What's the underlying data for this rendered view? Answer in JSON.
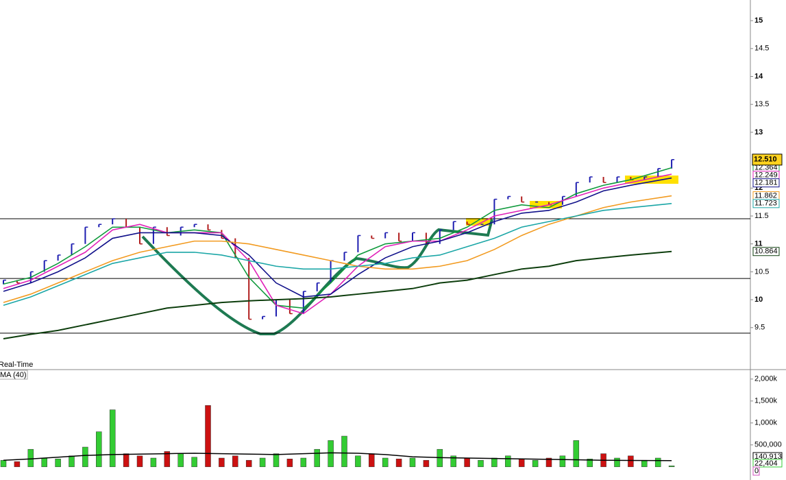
{
  "chart_data": [
    {
      "type": "price",
      "ylim": [
        8.76,
        15.37
      ],
      "yticks": [
        15,
        14.5,
        14,
        13.5,
        13,
        12,
        11.5,
        11,
        10.5,
        10,
        9.5
      ],
      "hlines": [
        11.45,
        10.38,
        9.4
      ],
      "up_color": "#1c1cb0",
      "down_color": "#b01c1c",
      "close": [
        10.35,
        10.3,
        10.5,
        10.7,
        10.8,
        11.0,
        11.3,
        11.35,
        11.45,
        11.3,
        11.0,
        11.3,
        11.15,
        11.3,
        11.35,
        11.25,
        11.1,
        10.75,
        9.65,
        9.7,
        10.0,
        9.75,
        10.15,
        10.3,
        10.7,
        10.85,
        11.15,
        11.1,
        11.2,
        11.05,
        11.2,
        11.0,
        11.25,
        11.4,
        11.35,
        11.35,
        11.8,
        11.85,
        11.75,
        11.75,
        11.7,
        11.85,
        12.1,
        12.2,
        12.1,
        12.2,
        12.15,
        12.2,
        12.35,
        12.51
      ],
      "last_price": {
        "value": 12.51,
        "label": "12.510"
      },
      "line_x": [
        0,
        2,
        4,
        6,
        8,
        10,
        12,
        14,
        16,
        18,
        20,
        22,
        24,
        26,
        28,
        30,
        32,
        34,
        36,
        38,
        40,
        42,
        44,
        46,
        49
      ],
      "series": [
        {
          "color": "#0f9a3c",
          "values": [
            10.28,
            10.4,
            10.65,
            10.95,
            11.3,
            11.3,
            11.2,
            11.25,
            11.2,
            10.4,
            9.9,
            9.85,
            10.3,
            10.8,
            11.0,
            11.05,
            11.1,
            11.3,
            11.6,
            11.7,
            11.65,
            11.9,
            12.05,
            12.15,
            12.364
          ]
        },
        {
          "color": "#e020b8",
          "values": [
            10.2,
            10.35,
            10.6,
            10.85,
            11.25,
            11.35,
            11.2,
            11.2,
            11.2,
            10.7,
            9.9,
            9.75,
            10.1,
            10.6,
            10.95,
            11.05,
            11.05,
            11.25,
            11.5,
            11.6,
            11.7,
            11.85,
            12.0,
            12.1,
            12.249
          ]
        },
        {
          "color": "#10108a",
          "values": [
            10.15,
            10.3,
            10.5,
            10.75,
            11.1,
            11.2,
            11.2,
            11.2,
            11.15,
            10.8,
            10.3,
            10.05,
            10.1,
            10.45,
            10.75,
            10.95,
            11.05,
            11.2,
            11.4,
            11.55,
            11.6,
            11.75,
            11.95,
            12.05,
            12.181
          ]
        },
        {
          "color": "#f29a1f",
          "values": [
            9.95,
            10.1,
            10.3,
            10.5,
            10.7,
            10.85,
            10.95,
            11.05,
            11.05,
            11.0,
            10.9,
            10.8,
            10.7,
            10.6,
            10.55,
            10.55,
            10.6,
            10.7,
            10.9,
            11.15,
            11.35,
            11.5,
            11.65,
            11.75,
            11.862
          ]
        },
        {
          "color": "#1aa6a6",
          "values": [
            9.9,
            10.05,
            10.25,
            10.45,
            10.65,
            10.75,
            10.85,
            10.85,
            10.8,
            10.7,
            10.6,
            10.55,
            10.55,
            10.6,
            10.65,
            10.75,
            10.8,
            10.95,
            11.1,
            11.3,
            11.4,
            11.5,
            11.6,
            11.65,
            11.723
          ]
        },
        {
          "color": "#0c3d0c",
          "values": [
            9.3,
            9.38,
            9.45,
            9.55,
            9.65,
            9.75,
            9.85,
            9.9,
            9.95,
            9.98,
            10.0,
            10.02,
            10.05,
            10.1,
            10.15,
            10.2,
            10.3,
            10.35,
            10.45,
            10.55,
            10.6,
            10.7,
            10.75,
            10.8,
            10.864
          ]
        }
      ],
      "legend_text": "Real-Time"
    },
    {
      "type": "volume",
      "ylim": [
        -300000,
        2200000
      ],
      "yticks": [
        {
          "value": 2000000,
          "label": "2,000k"
        },
        {
          "value": 1500000,
          "label": "1,500k"
        },
        {
          "value": 1000000,
          "label": "1,000k"
        },
        {
          "value": 500000,
          "label": "500,000"
        }
      ],
      "up_color": "#33cc33",
      "down_color": "#cc1111",
      "values": [
        150000,
        120000,
        400000,
        200000,
        180000,
        250000,
        450000,
        800000,
        1300000,
        300000,
        250000,
        200000,
        350000,
        300000,
        220000,
        1400000,
        200000,
        250000,
        150000,
        200000,
        300000,
        180000,
        200000,
        400000,
        600000,
        700000,
        250000,
        300000,
        200000,
        180000,
        200000,
        150000,
        400000,
        250000,
        200000,
        150000,
        200000,
        250000,
        180000,
        150000,
        200000,
        250000,
        600000,
        180000,
        300000,
        200000,
        250000,
        150000,
        200000,
        22404
      ],
      "ma_color": "#000000",
      "ma_values": [
        150000,
        180000,
        220000,
        260000,
        280000,
        290000,
        300000,
        310000,
        300000,
        290000,
        280000,
        300000,
        320000,
        310000,
        280000,
        230000,
        210000,
        200000,
        190000,
        180000,
        170000,
        160000,
        150000,
        145000,
        140913
      ],
      "ma_label": "140,913",
      "last_label": "22,404",
      "zero_label": "0",
      "legend_text": "MA (40)"
    }
  ]
}
